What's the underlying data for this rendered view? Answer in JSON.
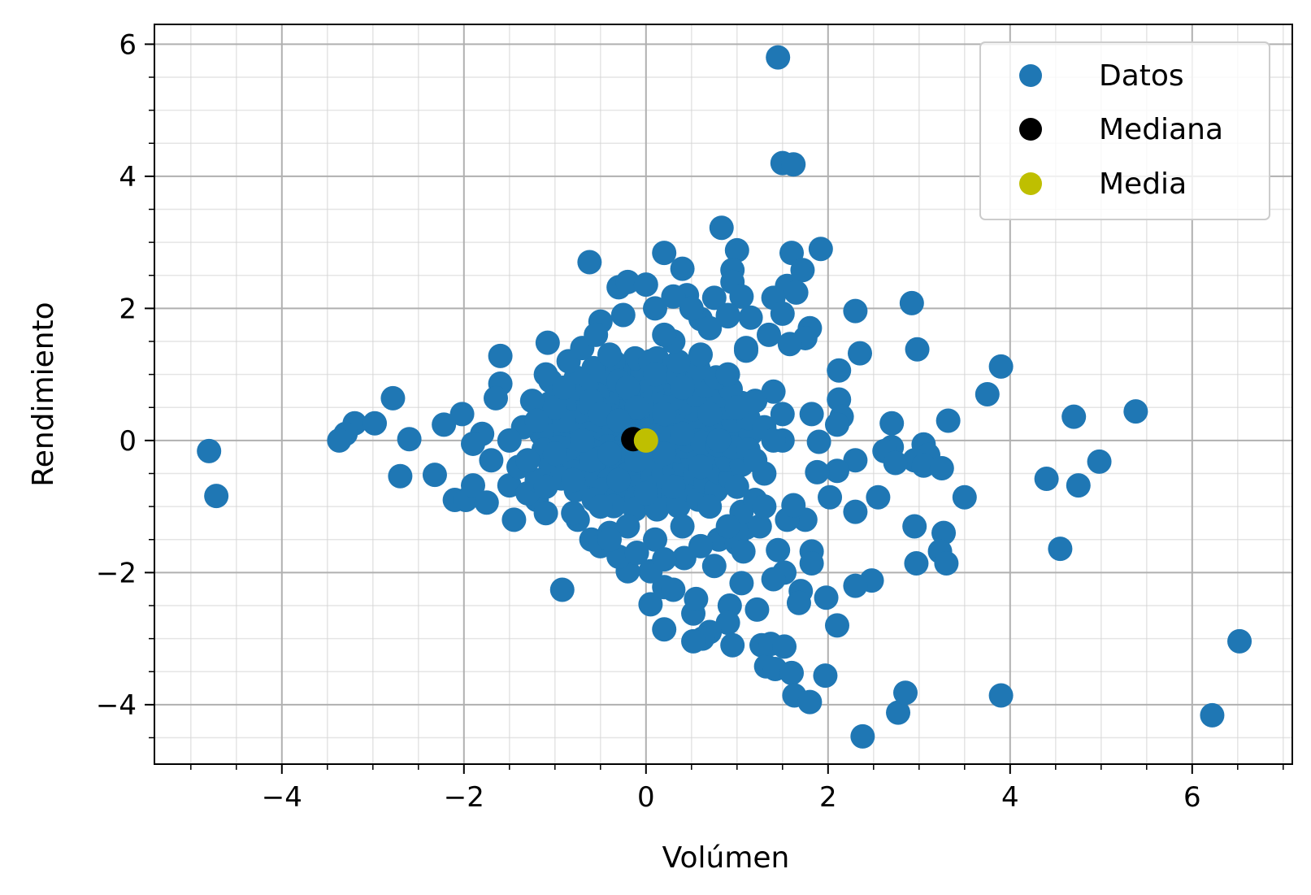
{
  "chart_data": {
    "type": "scatter",
    "xlabel": "Volúmen",
    "ylabel": "Rendimiento",
    "xlim": [
      -5.4,
      7.1
    ],
    "ylim": [
      -4.9,
      6.3
    ],
    "x_ticks": [
      -4,
      -2,
      0,
      2,
      4,
      6
    ],
    "y_ticks": [
      -4,
      -2,
      0,
      2,
      4,
      6
    ],
    "x_tick_labels": [
      "−4",
      "−2",
      "0",
      "2",
      "4",
      "6"
    ],
    "y_tick_labels": [
      "−4",
      "−2",
      "0",
      "2",
      "4",
      "6"
    ],
    "grid": true,
    "minor_grid": true,
    "legend_position": "top-right",
    "series": [
      {
        "name": "Datos",
        "color": "#1f77b4",
        "points": [
          [
            1.45,
            5.8
          ],
          [
            1.5,
            4.2
          ],
          [
            1.62,
            4.18
          ],
          [
            0.83,
            3.22
          ],
          [
            1.92,
            2.9
          ],
          [
            1.0,
            2.88
          ],
          [
            0.2,
            2.84
          ],
          [
            1.6,
            2.84
          ],
          [
            -0.62,
            2.7
          ],
          [
            0.4,
            2.6
          ],
          [
            1.72,
            2.58
          ],
          [
            0.95,
            2.58
          ],
          [
            0.95,
            2.4
          ],
          [
            1.55,
            2.34
          ],
          [
            -0.3,
            2.32
          ],
          [
            -0.2,
            2.4
          ],
          [
            0.0,
            2.36
          ],
          [
            1.65,
            2.24
          ],
          [
            0.45,
            2.2
          ],
          [
            0.3,
            2.18
          ],
          [
            1.05,
            2.18
          ],
          [
            0.75,
            2.16
          ],
          [
            1.4,
            2.16
          ],
          [
            2.92,
            2.08
          ],
          [
            2.3,
            1.96
          ],
          [
            1.5,
            1.92
          ],
          [
            0.9,
            1.88
          ],
          [
            1.15,
            1.86
          ],
          [
            0.6,
            1.84
          ],
          [
            -0.5,
            1.8
          ],
          [
            1.8,
            1.7
          ],
          [
            1.35,
            1.6
          ],
          [
            1.75,
            1.55
          ],
          [
            1.58,
            1.46
          ],
          [
            2.98,
            1.38
          ],
          [
            2.35,
            1.32
          ],
          [
            1.1,
            1.36
          ],
          [
            -1.08,
            1.48
          ],
          [
            -1.6,
            1.28
          ],
          [
            3.9,
            1.12
          ],
          [
            2.12,
            1.06
          ],
          [
            -1.6,
            0.86
          ],
          [
            1.4,
            0.74
          ],
          [
            3.75,
            0.7
          ],
          [
            2.12,
            0.62
          ],
          [
            -1.65,
            0.64
          ],
          [
            -2.78,
            0.64
          ],
          [
            1.5,
            0.4
          ],
          [
            1.82,
            0.4
          ],
          [
            2.15,
            0.36
          ],
          [
            4.7,
            0.36
          ],
          [
            5.38,
            0.44
          ],
          [
            -2.02,
            0.4
          ],
          [
            2.7,
            0.26
          ],
          [
            3.32,
            0.3
          ],
          [
            -3.2,
            0.26
          ],
          [
            -2.98,
            0.26
          ],
          [
            -2.22,
            0.24
          ],
          [
            2.1,
            0.24
          ],
          [
            -3.3,
            0.1
          ],
          [
            -2.6,
            0.02
          ],
          [
            -3.37,
            0.0
          ],
          [
            -4.8,
            -0.16
          ],
          [
            -4.72,
            -0.84
          ],
          [
            -2.7,
            -0.54
          ],
          [
            -2.32,
            -0.52
          ],
          [
            -2.1,
            -0.9
          ],
          [
            -1.98,
            -0.9
          ],
          [
            -1.9,
            -0.68
          ],
          [
            -1.75,
            -0.94
          ],
          [
            -1.5,
            -0.68
          ],
          [
            -1.45,
            -1.2
          ],
          [
            -1.2,
            -0.9
          ],
          [
            -1.1,
            -1.1
          ],
          [
            -0.92,
            -2.26
          ],
          [
            1.9,
            -0.02
          ],
          [
            1.5,
            0.0
          ],
          [
            2.3,
            -0.3
          ],
          [
            2.1,
            -0.46
          ],
          [
            1.88,
            -0.48
          ],
          [
            2.7,
            -0.1
          ],
          [
            2.62,
            -0.16
          ],
          [
            3.05,
            -0.06
          ],
          [
            3.1,
            -0.22
          ],
          [
            2.95,
            -0.3
          ],
          [
            2.74,
            -0.34
          ],
          [
            3.05,
            -0.38
          ],
          [
            3.25,
            -0.42
          ],
          [
            4.4,
            -0.58
          ],
          [
            4.75,
            -0.68
          ],
          [
            4.98,
            -0.32
          ],
          [
            3.5,
            -0.86
          ],
          [
            2.55,
            -0.86
          ],
          [
            2.02,
            -0.86
          ],
          [
            2.3,
            -1.08
          ],
          [
            2.95,
            -1.3
          ],
          [
            3.27,
            -1.4
          ],
          [
            3.23,
            -1.68
          ],
          [
            3.3,
            -1.86
          ],
          [
            2.97,
            -1.86
          ],
          [
            4.55,
            -1.64
          ],
          [
            2.48,
            -2.12
          ],
          [
            2.3,
            -2.2
          ],
          [
            1.98,
            -2.38
          ],
          [
            2.1,
            -2.8
          ],
          [
            1.7,
            -2.28
          ],
          [
            1.68,
            -2.46
          ],
          [
            1.82,
            -1.68
          ],
          [
            1.82,
            -1.86
          ],
          [
            1.75,
            -1.2
          ],
          [
            1.55,
            -1.2
          ],
          [
            1.62,
            -0.98
          ],
          [
            1.45,
            -1.66
          ],
          [
            1.52,
            -2.0
          ],
          [
            1.4,
            -2.1
          ],
          [
            1.22,
            -2.56
          ],
          [
            1.27,
            -3.1
          ],
          [
            1.32,
            -3.42
          ],
          [
            1.42,
            -3.46
          ],
          [
            1.37,
            -3.08
          ],
          [
            1.52,
            -3.12
          ],
          [
            1.6,
            -3.52
          ],
          [
            1.63,
            -3.86
          ],
          [
            1.8,
            -3.96
          ],
          [
            1.97,
            -3.56
          ],
          [
            2.38,
            -4.48
          ],
          [
            2.77,
            -4.12
          ],
          [
            2.85,
            -3.82
          ],
          [
            3.9,
            -3.86
          ],
          [
            6.22,
            -4.16
          ],
          [
            6.52,
            -3.04
          ],
          [
            1.05,
            -2.16
          ],
          [
            0.92,
            -2.5
          ],
          [
            0.9,
            -2.76
          ],
          [
            0.95,
            -3.1
          ],
          [
            0.7,
            -2.9
          ],
          [
            0.62,
            -3.0
          ],
          [
            0.52,
            -3.04
          ],
          [
            0.52,
            -2.62
          ],
          [
            0.55,
            -2.4
          ],
          [
            0.2,
            -2.86
          ],
          [
            0.05,
            -2.48
          ],
          [
            0.2,
            -2.22
          ],
          [
            0.3,
            -2.26
          ],
          [
            0.05,
            -1.98
          ],
          [
            -0.2,
            -1.98
          ],
          [
            0.42,
            -1.78
          ],
          [
            0.75,
            -1.9
          ],
          [
            0.8,
            -1.5
          ],
          [
            1.0,
            -1.56
          ],
          [
            1.07,
            -1.68
          ],
          [
            1.1,
            -1.32
          ],
          [
            1.25,
            -1.3
          ],
          [
            1.05,
            -1.08
          ],
          [
            1.2,
            -0.9
          ],
          [
            -0.6,
            -1.5
          ],
          [
            -0.5,
            -1.6
          ],
          [
            -0.3,
            -1.76
          ],
          [
            -0.4,
            -1.4
          ],
          [
            -0.75,
            -1.2
          ],
          [
            -1.3,
            -0.8
          ],
          [
            -1.35,
            0.2
          ],
          [
            -1.25,
            0.6
          ],
          [
            -1.05,
            0.9
          ],
          [
            -0.85,
            1.2
          ],
          [
            -0.7,
            1.4
          ],
          [
            -0.55,
            1.6
          ],
          [
            -0.25,
            1.9
          ],
          [
            0.1,
            2.0
          ],
          [
            -0.9,
            0.3
          ],
          [
            -0.6,
            0.6
          ],
          [
            -0.3,
            0.9
          ],
          [
            0.05,
            1.2
          ],
          [
            0.3,
            1.5
          ],
          [
            0.6,
            1.3
          ],
          [
            0.9,
            1.0
          ],
          [
            1.2,
            0.6
          ],
          [
            1.3,
            0.2
          ],
          [
            1.2,
            -0.3
          ],
          [
            1.0,
            -0.7
          ],
          [
            0.7,
            -1.0
          ],
          [
            0.4,
            -1.3
          ],
          [
            0.1,
            -1.5
          ],
          [
            -0.2,
            -1.3
          ],
          [
            -0.5,
            -1.0
          ],
          [
            -0.8,
            -0.6
          ],
          [
            -1.0,
            -0.2
          ],
          [
            -0.6,
            -0.3
          ],
          [
            -0.3,
            -0.6
          ],
          [
            0.0,
            -0.8
          ],
          [
            0.3,
            -0.7
          ],
          [
            0.6,
            -0.4
          ],
          [
            0.8,
            0.0
          ],
          [
            0.7,
            0.4
          ],
          [
            0.4,
            0.8
          ],
          [
            0.1,
            1.0
          ],
          [
            -0.2,
            0.8
          ],
          [
            -0.5,
            0.4
          ],
          [
            -0.7,
            0.0
          ],
          [
            -0.4,
            -0.2
          ],
          [
            -0.1,
            -0.3
          ],
          [
            0.2,
            -0.2
          ],
          [
            0.4,
            0.1
          ],
          [
            0.2,
            0.4
          ],
          [
            -0.1,
            0.5
          ],
          [
            -0.3,
            0.3
          ],
          [
            0.0,
            0.0
          ],
          [
            -1.5,
            0.0
          ],
          [
            -1.7,
            -0.3
          ],
          [
            -1.8,
            0.1
          ],
          [
            -1.9,
            -0.05
          ],
          [
            -1.4,
            -0.4
          ],
          [
            -1.2,
            -0.6
          ],
          [
            -1.0,
            0.5
          ],
          [
            -1.1,
            1.0
          ],
          [
            0.5,
            2.0
          ],
          [
            0.9,
            1.9
          ],
          [
            1.1,
            1.4
          ],
          [
            1.0,
            0.5
          ],
          [
            1.4,
            0.0
          ],
          [
            1.3,
            -0.5
          ],
          [
            1.3,
            -1.0
          ],
          [
            0.9,
            -1.3
          ],
          [
            0.6,
            -1.6
          ],
          [
            0.2,
            -1.8
          ],
          [
            -0.1,
            -1.7
          ],
          [
            -0.4,
            -1.5
          ],
          [
            -0.8,
            -1.1
          ],
          [
            -1.1,
            -0.7
          ],
          [
            -1.3,
            -0.3
          ],
          [
            -1.2,
            0.3
          ],
          [
            -0.9,
            0.8
          ],
          [
            -0.4,
            1.3
          ],
          [
            0.2,
            1.6
          ],
          [
            0.7,
            1.7
          ]
        ]
      },
      {
        "name": "Mediana",
        "color": "#000000",
        "points": [
          [
            -0.14,
            0.02
          ]
        ]
      },
      {
        "name": "Media",
        "color": "#bfbf00",
        "points": [
          [
            0.0,
            0.0
          ]
        ]
      }
    ]
  }
}
